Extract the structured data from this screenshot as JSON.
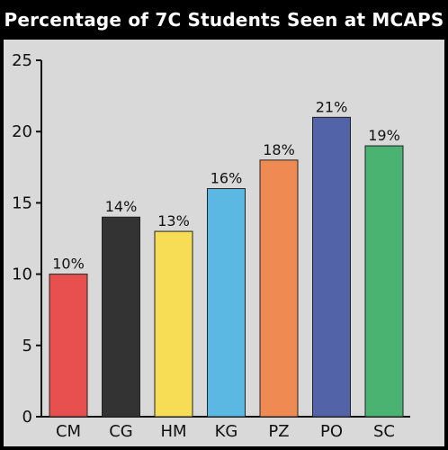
{
  "chart_data": {
    "type": "bar",
    "title": "Percentage of 7C Students Seen at MCAPS",
    "categories": [
      "CM",
      "CG",
      "HM",
      "KG",
      "PZ",
      "PO",
      "SC"
    ],
    "values": [
      10,
      14,
      13,
      16,
      18,
      21,
      19
    ],
    "data_labels": [
      "10%",
      "14%",
      "13%",
      "16%",
      "18%",
      "21%",
      "19%"
    ],
    "colors": [
      "#e85050",
      "#333333",
      "#f7dc56",
      "#5bb8e3",
      "#ef8a52",
      "#5263a8",
      "#4bb372"
    ],
    "ylim": [
      0,
      25
    ],
    "yticks": [
      0,
      5,
      10,
      15,
      20,
      25
    ],
    "ytick_labels": [
      "0",
      "5",
      "10",
      "15",
      "20",
      "25"
    ],
    "xlabel": "",
    "ylabel": "",
    "grid": false,
    "legend": "none"
  }
}
